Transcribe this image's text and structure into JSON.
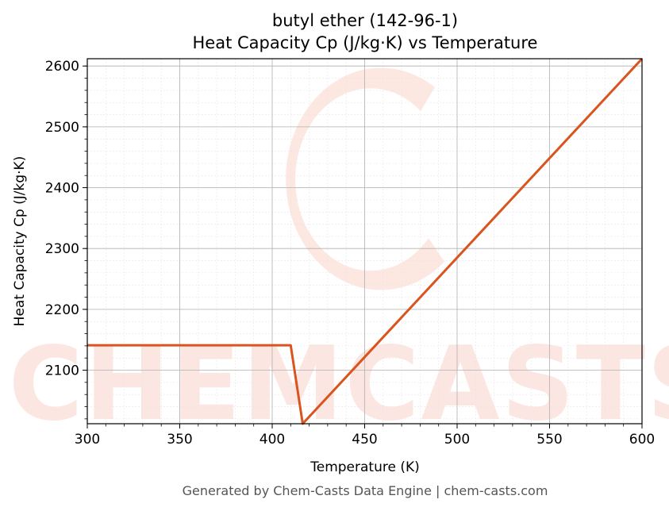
{
  "chart_data": {
    "type": "line",
    "title": "butyl ether (142-96-1)",
    "subtitle": "Heat Capacity Cp (J/kg·K) vs Temperature",
    "xlabel": "Temperature (K)",
    "ylabel": "Heat Capacity Cp (J/kg·K)",
    "xlim": [
      300,
      600
    ],
    "ylim": [
      2012,
      2612
    ],
    "xticks": [
      300,
      350,
      400,
      450,
      500,
      550,
      600
    ],
    "yticks": [
      2100,
      2200,
      2300,
      2400,
      2500,
      2600
    ],
    "grid": true,
    "series": [
      {
        "color": "#d9541e",
        "x": [
          300,
          410,
          416.5,
          600
        ],
        "y": [
          2141,
          2141,
          2012,
          2612
        ]
      }
    ]
  },
  "watermark": {
    "text": "CHEMCASTS",
    "color": "#fbd3c9"
  },
  "footer": "Generated by Chem-Casts Data Engine | chem-casts.com"
}
